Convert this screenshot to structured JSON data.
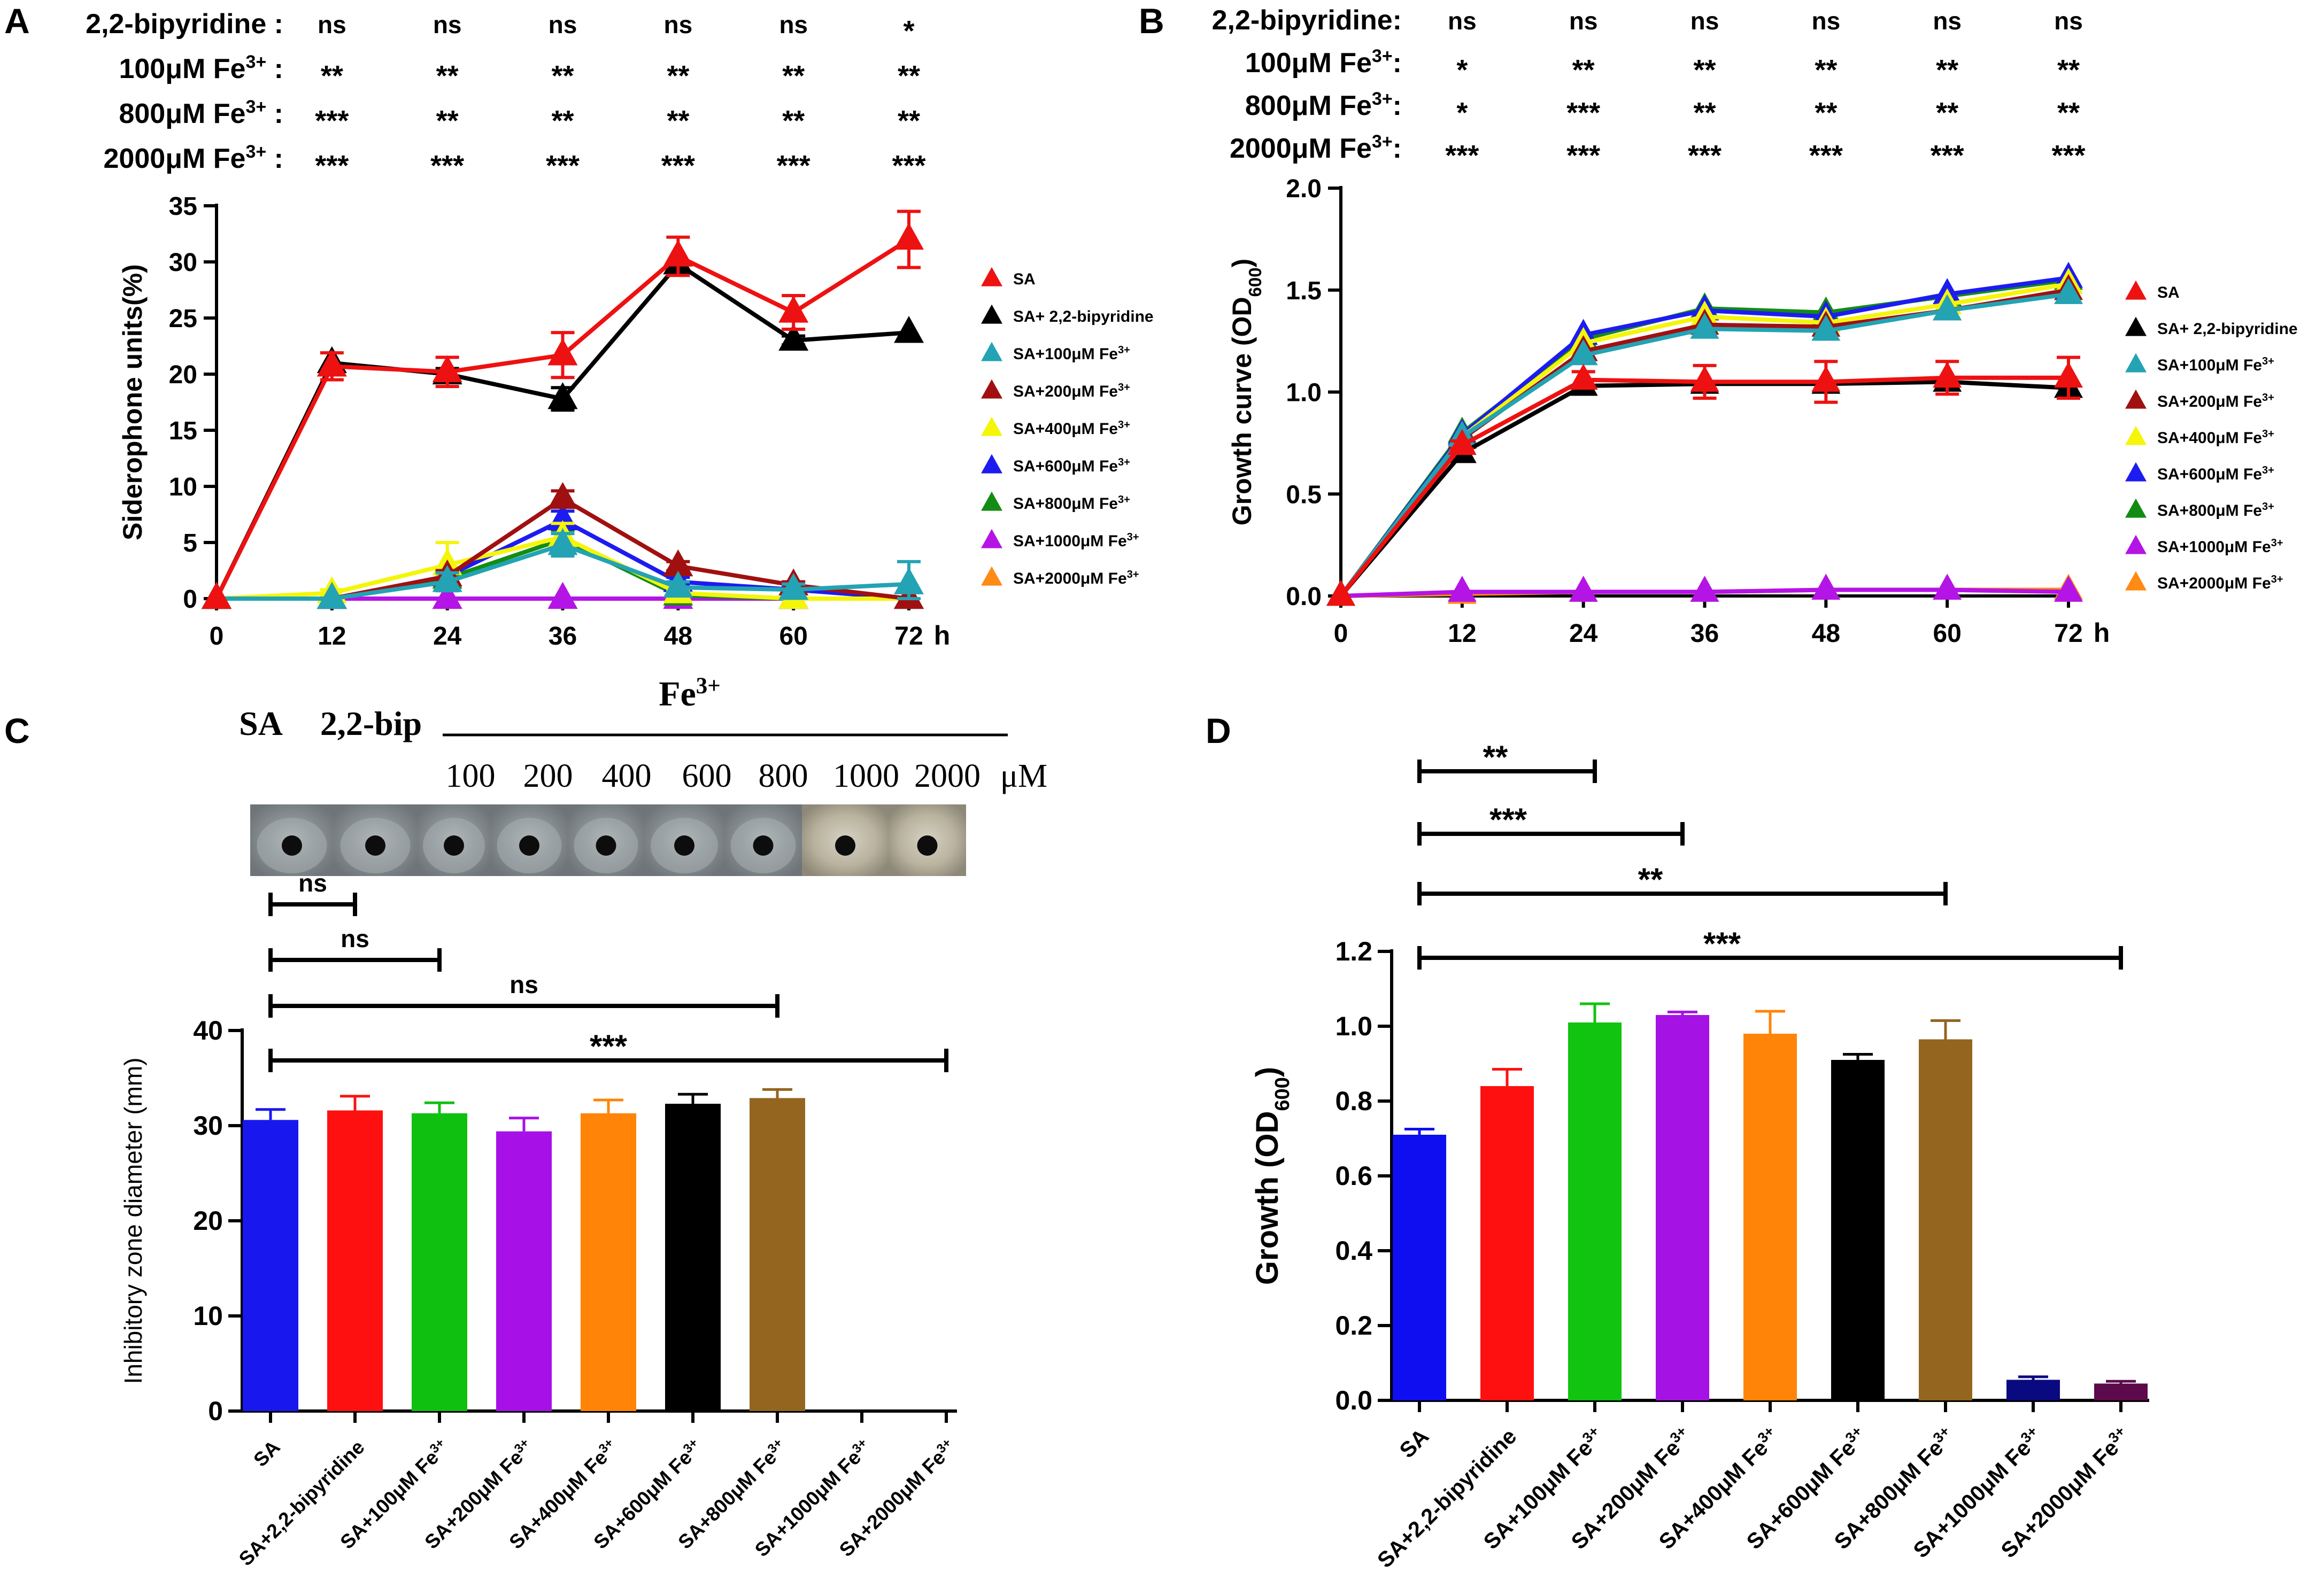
{
  "panels": {
    "A": {
      "letter": "A",
      "stat_rows": [
        {
          "label": "2,2-bipyridine :",
          "marks": [
            "ns",
            "ns",
            "ns",
            "ns",
            "ns",
            "*"
          ]
        },
        {
          "label": "100μM Fe3+ :",
          "marks": [
            "**",
            "**",
            "**",
            "**",
            "**",
            "**"
          ]
        },
        {
          "label": "800μM Fe3+ :",
          "marks": [
            "***",
            "**",
            "**",
            "**",
            "**",
            "**"
          ]
        },
        {
          "label": "2000μM Fe3+ :",
          "marks": [
            "***",
            "***",
            "***",
            "***",
            "***",
            "***"
          ]
        }
      ]
    },
    "B": {
      "letter": "B",
      "stat_rows": [
        {
          "label": "2,2-bipyridine:",
          "marks": [
            "ns",
            "ns",
            "ns",
            "ns",
            "ns",
            "ns"
          ]
        },
        {
          "label": "100μM Fe3+:",
          "marks": [
            "*",
            "**",
            "**",
            "**",
            "**",
            "**"
          ]
        },
        {
          "label": "800μM Fe3+:",
          "marks": [
            "*",
            "***",
            "**",
            "**",
            "**",
            "**"
          ]
        },
        {
          "label": "2000μM Fe3+:",
          "marks": [
            "***",
            "***",
            "***",
            "***",
            "***",
            "***"
          ]
        }
      ]
    },
    "C": {
      "letter": "C",
      "header_sa": "SA",
      "header_bip": "2,2-bip",
      "header_fe": "Fe3+",
      "conc_labels": [
        "100",
        "200",
        "400",
        "600",
        "800",
        "1000",
        "2000"
      ],
      "conc_unit": "μM",
      "plate_photo_alt": "agar plate inhibition zones",
      "brackets": [
        {
          "from": 0,
          "to": 1,
          "label": "ns"
        },
        {
          "from": 0,
          "to": 2,
          "label": "ns"
        },
        {
          "from": 0,
          "to": 6,
          "label": "ns"
        },
        {
          "from": 0,
          "to": 8,
          "label": "***"
        }
      ]
    },
    "D": {
      "letter": "D",
      "brackets": [
        {
          "from": 0,
          "to": 2,
          "label": "**"
        },
        {
          "from": 0,
          "to": 3,
          "label": "***"
        },
        {
          "from": 0,
          "to": 6,
          "label": "**"
        },
        {
          "from": 0,
          "to": 8,
          "label": "***"
        }
      ]
    }
  },
  "colors": {
    "SA": "#ee1111",
    "SA+2,2-bipyridine": "#000000",
    "SA+100μM Fe3+": "#23a3b4",
    "SA+200μM Fe3+": "#a11010",
    "SA+400μM Fe3+": "#f5f50a",
    "SA+600μM Fe3+": "#1c1cf0",
    "SA+800μM Fe3+": "#138c13",
    "SA+1000μM Fe3+": "#b414e6",
    "SA+2000μM Fe3+": "#ff8a14"
  },
  "chart_data": [
    {
      "id": "A",
      "type": "line",
      "title": "",
      "xlabel": "h",
      "ylabel": "Siderophone units(%)",
      "x": [
        0,
        12,
        24,
        36,
        48,
        60,
        72
      ],
      "xticks": [
        "0",
        "12",
        "24",
        "36",
        "48",
        "60",
        "72"
      ],
      "ylim": [
        0,
        35
      ],
      "yticks": [
        "0",
        "5",
        "10",
        "15",
        "20",
        "25",
        "30",
        "35"
      ],
      "legend_position": "right",
      "series": [
        {
          "name": "SA",
          "legend": "SA",
          "values": [
            0,
            20.7,
            20.2,
            21.7,
            30.5,
            25.5,
            32.0
          ],
          "err": [
            0,
            1.2,
            1.3,
            2.0,
            1.7,
            1.5,
            2.5
          ]
        },
        {
          "name": "SA+2,2-bipyridine",
          "legend": "SA+ 2,2-bipyridine",
          "values": [
            0,
            21.0,
            20.0,
            17.8,
            29.8,
            23.0,
            23.7
          ],
          "err": [
            0,
            0,
            0.5,
            1.0,
            0,
            0.4,
            0
          ]
        },
        {
          "name": "SA+100μM Fe3+",
          "legend": "SA+100μM Fe3+",
          "values": [
            0,
            0,
            1.5,
            4.8,
            1.0,
            0.8,
            1.3
          ],
          "err": [
            0,
            0,
            0.8,
            1.0,
            0.5,
            0.5,
            2.0
          ]
        },
        {
          "name": "SA+200μM Fe3+",
          "legend": "SA+200μM Fe3+",
          "values": [
            0,
            0,
            2.0,
            8.9,
            2.9,
            1.2,
            0
          ],
          "err": [
            0,
            0,
            0.5,
            0.7,
            0.4,
            0.3,
            0
          ]
        },
        {
          "name": "SA+400μM Fe3+",
          "legend": "SA+400μM Fe3+",
          "values": [
            0,
            0.5,
            3.0,
            5.5,
            0.5,
            0,
            0
          ],
          "err": [
            0,
            0.3,
            2.0,
            1.2,
            0.3,
            0,
            0
          ]
        },
        {
          "name": "SA+600μM Fe3+",
          "legend": "SA+600μM Fe3+",
          "values": [
            0,
            0,
            2.0,
            7.0,
            1.5,
            0.8,
            0
          ],
          "err": [
            0,
            0,
            0.5,
            0.8,
            0.4,
            0.3,
            0
          ]
        },
        {
          "name": "SA+800μM Fe3+",
          "legend": "SA+800μM Fe3+",
          "values": [
            0,
            0,
            1.8,
            5.3,
            0.3,
            0,
            0
          ],
          "err": [
            0,
            0,
            0.4,
            0.8,
            0.2,
            0,
            0
          ]
        },
        {
          "name": "SA+1000μM Fe3+",
          "legend": "SA+1000μM Fe3+",
          "values": [
            0,
            0,
            0,
            0,
            0,
            0,
            0
          ],
          "err": [
            0,
            0,
            0,
            0,
            0,
            0,
            0
          ]
        },
        {
          "name": "SA+2000μM Fe3+",
          "legend": "SA+2000μM Fe3+",
          "values": [
            0,
            0,
            0,
            0,
            0,
            0,
            0
          ],
          "err": [
            0,
            0,
            0,
            0,
            0,
            0,
            0
          ]
        }
      ]
    },
    {
      "id": "B",
      "type": "line",
      "title": "",
      "xlabel": "h",
      "ylabel": "Growth curve (OD600)",
      "x": [
        0,
        12,
        24,
        36,
        48,
        60,
        72
      ],
      "xticks": [
        "0",
        "12",
        "24",
        "36",
        "48",
        "60",
        "72"
      ],
      "ylim": [
        0,
        2.0
      ],
      "yticks": [
        "0.0",
        "0.5",
        "1.0",
        "1.5",
        "2.0"
      ],
      "legend_position": "right",
      "series": [
        {
          "name": "SA",
          "legend": "SA",
          "values": [
            0,
            0.74,
            1.06,
            1.05,
            1.05,
            1.07,
            1.07
          ],
          "err": [
            0,
            0.02,
            0.04,
            0.08,
            0.1,
            0.08,
            0.1
          ]
        },
        {
          "name": "SA+2,2-bipyridine",
          "legend": "SA+ 2,2-bipyridine",
          "values": [
            0,
            0.7,
            1.03,
            1.04,
            1.04,
            1.05,
            1.02
          ],
          "err": [
            0,
            0,
            0,
            0,
            0,
            0,
            0
          ]
        },
        {
          "name": "SA+100μM Fe3+",
          "legend": "SA+100μM Fe3+",
          "values": [
            0,
            0.78,
            1.18,
            1.31,
            1.3,
            1.4,
            1.48
          ],
          "err": [
            0,
            0,
            0,
            0,
            0,
            0,
            0
          ]
        },
        {
          "name": "SA+200μM Fe3+",
          "legend": "SA+200μM Fe3+",
          "values": [
            0,
            0.77,
            1.2,
            1.33,
            1.32,
            1.4,
            1.5
          ],
          "err": [
            0,
            0,
            0,
            0,
            0,
            0,
            0
          ]
        },
        {
          "name": "SA+400μM Fe3+",
          "legend": "SA+400μM Fe3+",
          "values": [
            0,
            0.78,
            1.24,
            1.37,
            1.34,
            1.43,
            1.53
          ],
          "err": [
            0,
            0,
            0,
            0,
            0,
            0,
            0
          ]
        },
        {
          "name": "SA+600μM Fe3+",
          "legend": "SA+600μM Fe3+",
          "values": [
            0,
            0.79,
            1.28,
            1.4,
            1.37,
            1.48,
            1.56
          ],
          "err": [
            0,
            0,
            0,
            0,
            0,
            0,
            0
          ]
        },
        {
          "name": "SA+800μM Fe3+",
          "legend": "SA+800μM Fe3+",
          "values": [
            0,
            0.8,
            1.26,
            1.41,
            1.39,
            1.47,
            1.55
          ],
          "err": [
            0,
            0,
            0,
            0,
            0,
            0,
            0
          ]
        },
        {
          "name": "SA+1000μM Fe3+",
          "legend": "SA+1000μM Fe3+",
          "values": [
            0,
            0.02,
            0.02,
            0.02,
            0.03,
            0.03,
            0.02
          ],
          "err": [
            0,
            0,
            0,
            0,
            0,
            0,
            0
          ]
        },
        {
          "name": "SA+2000μM Fe3+",
          "legend": "SA+2000μM Fe3+",
          "values": [
            0,
            0.01,
            0.02,
            0.02,
            0.03,
            0.03,
            0.03
          ],
          "err": [
            0,
            0,
            0,
            0,
            0,
            0,
            0
          ]
        }
      ]
    },
    {
      "id": "C",
      "type": "bar",
      "title": "",
      "xlabel": "",
      "ylabel": "Inhibitory zone diameter (mm)",
      "ylim": [
        0,
        40
      ],
      "yticks": [
        "0",
        "10",
        "20",
        "30",
        "40"
      ],
      "categories": [
        "SA",
        "SA+2,2-bipyridine",
        "SA+100μM Fe3+",
        "SA+200μM Fe3+",
        "SA+400μM Fe3+",
        "SA+600μM Fe3+",
        "SA+800μM Fe3+",
        "SA+1000μM Fe3+",
        "SA+2000μM Fe3+"
      ],
      "values": [
        30.6,
        31.6,
        31.3,
        29.4,
        31.3,
        32.3,
        32.9,
        0,
        0
      ],
      "err": [
        1.1,
        1.5,
        1.1,
        1.4,
        1.4,
        1.0,
        0.9,
        0,
        0
      ],
      "bar_colors": [
        "#1818ee",
        "#ff1010",
        "#10c010",
        "#a810e8",
        "#ff8408",
        "#000000",
        "#94651f",
        "#ffffff",
        "#ffffff"
      ]
    },
    {
      "id": "D",
      "type": "bar",
      "title": "",
      "xlabel": "",
      "ylabel": "Growth (OD600)",
      "ylim": [
        0,
        1.2
      ],
      "yticks": [
        "0.0",
        "0.2",
        "0.4",
        "0.6",
        "0.8",
        "1.0",
        "1.2"
      ],
      "categories": [
        "SA",
        "SA+2,2-bipyridine",
        "SA+100μM Fe3+",
        "SA+200μM Fe3+",
        "SA+400μM Fe3+",
        "SA+600μM Fe3+",
        "SA+800μM Fe3+",
        "SA+1000μM Fe3+",
        "SA+2000μM Fe3+"
      ],
      "values": [
        0.71,
        0.84,
        1.01,
        1.03,
        0.98,
        0.91,
        0.965,
        0.055,
        0.045
      ],
      "err": [
        0.015,
        0.045,
        0.05,
        0.008,
        0.06,
        0.015,
        0.05,
        0.008,
        0.006
      ],
      "bar_colors": [
        "#0e0ef0",
        "#ff1010",
        "#10c410",
        "#a412e4",
        "#ff8408",
        "#000000",
        "#94651f",
        "#0a0a80",
        "#5c0a4c"
      ]
    }
  ]
}
